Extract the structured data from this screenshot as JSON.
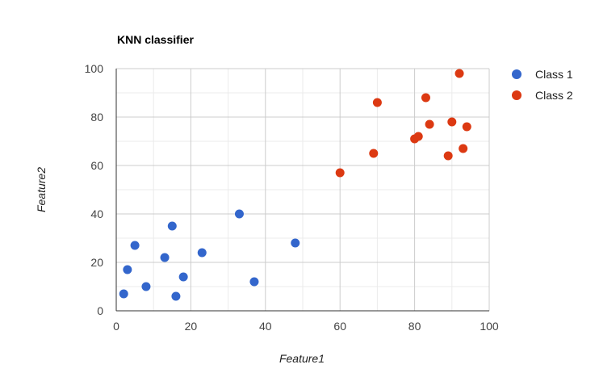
{
  "chart_data": {
    "type": "scatter",
    "title": "KNN classifier",
    "xlabel": "Feature1",
    "ylabel": "Feature2",
    "xlim": [
      0,
      100
    ],
    "ylim": [
      0,
      100
    ],
    "x_ticks": [
      0,
      20,
      40,
      60,
      80,
      100
    ],
    "y_ticks": [
      0,
      20,
      40,
      60,
      80,
      100
    ],
    "grid": true,
    "legend_position": "right",
    "series": [
      {
        "name": "Class 1",
        "color": "#3366cc",
        "points": [
          {
            "x": 2,
            "y": 7
          },
          {
            "x": 3,
            "y": 17
          },
          {
            "x": 5,
            "y": 27
          },
          {
            "x": 8,
            "y": 10
          },
          {
            "x": 13,
            "y": 22
          },
          {
            "x": 15,
            "y": 35
          },
          {
            "x": 16,
            "y": 6
          },
          {
            "x": 18,
            "y": 14
          },
          {
            "x": 23,
            "y": 24
          },
          {
            "x": 33,
            "y": 40
          },
          {
            "x": 37,
            "y": 12
          },
          {
            "x": 48,
            "y": 28
          }
        ]
      },
      {
        "name": "Class 2",
        "color": "#dc3912",
        "points": [
          {
            "x": 60,
            "y": 57
          },
          {
            "x": 69,
            "y": 65
          },
          {
            "x": 70,
            "y": 86
          },
          {
            "x": 80,
            "y": 71
          },
          {
            "x": 81,
            "y": 72
          },
          {
            "x": 83,
            "y": 88
          },
          {
            "x": 84,
            "y": 77
          },
          {
            "x": 89,
            "y": 64
          },
          {
            "x": 90,
            "y": 78
          },
          {
            "x": 92,
            "y": 98
          },
          {
            "x": 93,
            "y": 67
          },
          {
            "x": 94,
            "y": 76
          }
        ]
      }
    ]
  }
}
